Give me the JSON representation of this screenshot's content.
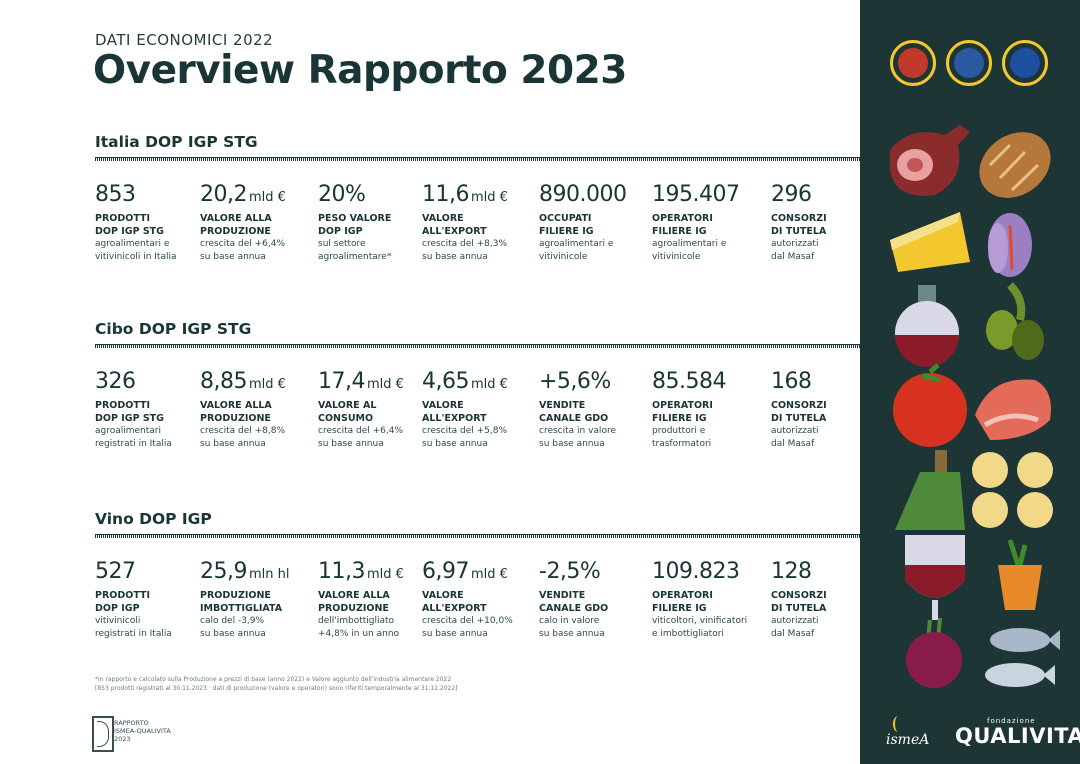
{
  "header": {
    "kicker": "DATI ECONOMICI 2022",
    "title": "Overview Rapporto 2023"
  },
  "sections": [
    {
      "title": "Italia DOP IGP STG",
      "stats": [
        {
          "num": "853",
          "unit": "",
          "label": "PRODOTTI\nDOP IGP STG",
          "desc": "agroalimentari e\nvitivinicoli in Italia"
        },
        {
          "num": "20,2",
          "unit": "mld €",
          "label": "VALORE ALLA\nPRODUZIONE",
          "desc": "crescita del +6,4%\nsu base annua"
        },
        {
          "num": "20%",
          "unit": "",
          "label": "PESO VALORE\nDOP IGP",
          "desc": "sul settore\nagroalimentare*"
        },
        {
          "num": "11,6",
          "unit": "mld €",
          "label": "VALORE\nALL'EXPORT",
          "desc": "crescita del +8,3%\nsu base annua"
        },
        {
          "num": "890.000",
          "unit": "",
          "label": "OCCUPATI\nFILIERE IG",
          "desc": "agroalimentari e\nvitivinicole"
        },
        {
          "num": "195.407",
          "unit": "",
          "label": "OPERATORI\nFILIERE IG",
          "desc": "agroalimentari e\nvitivinicole"
        },
        {
          "num": "296",
          "unit": "",
          "label": "CONSORZI\nDI TUTELA",
          "desc": "autorizzati\ndal Masaf"
        }
      ]
    },
    {
      "title": "Cibo DOP IGP STG",
      "stats": [
        {
          "num": "326",
          "unit": "",
          "label": "PRODOTTI\nDOP IGP STG",
          "desc": "agroalimentari\nregistrati in Italia"
        },
        {
          "num": "8,85",
          "unit": "mld €",
          "label": "VALORE ALLA\nPRODUZIONE",
          "desc": "crescita del +8,8%\nsu base annua"
        },
        {
          "num": "17,4",
          "unit": "mld €",
          "label": "VALORE AL\nCONSUMO",
          "desc": "crescita del +6,4%\nsu base annua"
        },
        {
          "num": "4,65",
          "unit": "mld €",
          "label": "VALORE\nALL'EXPORT",
          "desc": "crescita del +5,8%\nsu base annua"
        },
        {
          "num": "+5,6%",
          "unit": "",
          "label": "VENDITE\nCANALE GDO",
          "desc": "crescita in valore\nsu base annua"
        },
        {
          "num": "85.584",
          "unit": "",
          "label": "OPERATORI\nFILIERE IG",
          "desc": "produttori e\ntrasformatori"
        },
        {
          "num": "168",
          "unit": "",
          "label": "CONSORZI\nDI TUTELA",
          "desc": "autorizzati\ndal Masaf"
        }
      ]
    },
    {
      "title": "Vino DOP IGP",
      "stats": [
        {
          "num": "527",
          "unit": "",
          "label": "PRODOTTI\nDOP IGP",
          "desc": "vitivinicoli\nregistrati in Italia"
        },
        {
          "num": "25,9",
          "unit": "mln hl",
          "label": "PRODUZIONE\nIMBOTTIGLIATA",
          "desc": "calo del -3,9%\nsu base annua"
        },
        {
          "num": "11,3",
          "unit": "mld €",
          "label": "VALORE ALLA\nPRODUZIONE",
          "desc": "dell'imbottigliato\n+4,8% in un anno"
        },
        {
          "num": "6,97",
          "unit": "mld €",
          "label": "VALORE\nALL'EXPORT",
          "desc": "crescita del +10,0%\nsu base annua"
        },
        {
          "num": "-2,5%",
          "unit": "",
          "label": "VENDITE\nCANALE GDO",
          "desc": "calo in valore\nsu base annua"
        },
        {
          "num": "109.823",
          "unit": "",
          "label": "OPERATORI\nFILIERE IG",
          "desc": "viticoltori, vinificatori\ne imbottigliatori"
        },
        {
          "num": "128",
          "unit": "",
          "label": "CONSORZI\nDI TUTELA",
          "desc": "autorizzati\ndal Masaf"
        }
      ]
    }
  ],
  "footnote": "*in rapporto e calcolato sulla Produzione a prezzi di base (anno 2022) e Valore aggiunto dell'industria alimentare 2022\n[853 prodotti registrati al 30.11.2023 · dati di produzione (valore e operatori) sono riferiti temporalmente al 31.12.2022]",
  "report_logo": "RAPPORTO\nISMEA-QUALIVITA\n2023",
  "brands": {
    "ismea": "ismeA",
    "qualivita": "QUALIVITA",
    "qualivita_small": "fondazione"
  },
  "colors": {
    "panel": "#1e3535",
    "text": "#1a3535",
    "seal_ring": "#f2c82e"
  }
}
